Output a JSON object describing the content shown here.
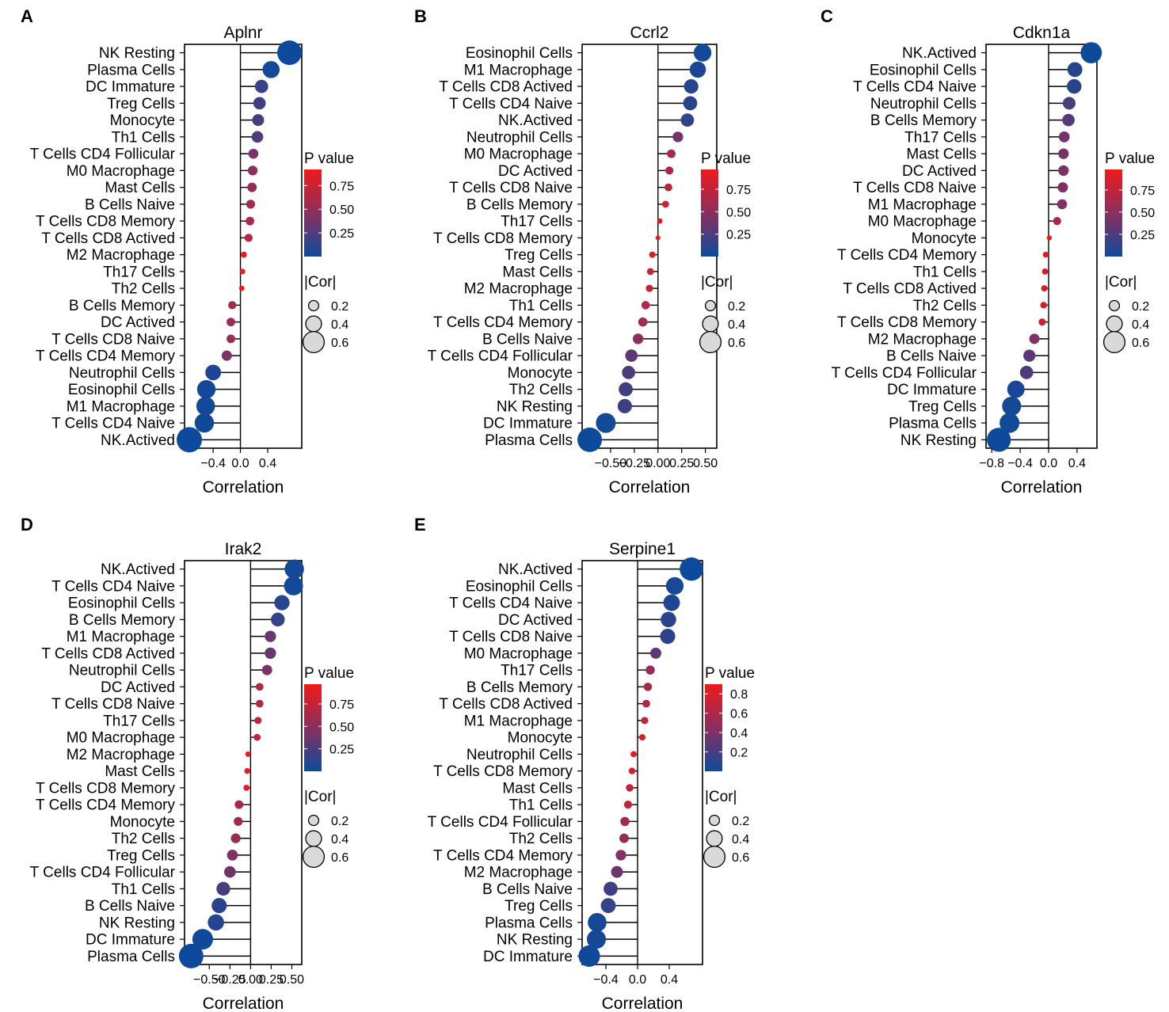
{
  "chart_data": [
    {
      "panel": "A",
      "type": "lollipop",
      "title": "Aplnr",
      "xlabel": "Correlation",
      "xlim": [
        -0.82,
        0.9
      ],
      "xticks": [
        {
          "v": -0.4,
          "label": "−0.4"
        },
        {
          "v": 0.0,
          "label": "0.0"
        },
        {
          "v": 0.4,
          "label": "0.4"
        }
      ],
      "categories": [
        "NK Resting",
        "Plasma Cells",
        "DC Immature",
        "Treg Cells",
        "Monocyte",
        "Th1 Cells",
        "T Cells CD4 Follicular",
        "M0 Macrophage",
        "Mast Cells",
        "B Cells Naive",
        "T Cells CD8 Memory",
        "T Cells CD8 Actived",
        "M2 Macrophage",
        "Th17 Cells",
        "Th2 Cells",
        "B Cells Memory",
        "DC Actived",
        "T Cells CD8 Naive",
        "T Cells CD4 Memory",
        "Neutrophil Cells",
        "Eosinophil Cells",
        "M1 Macrophage",
        "T Cells CD4 Naive",
        "NK.Actived"
      ],
      "correlation": [
        0.72,
        0.45,
        0.31,
        0.28,
        0.26,
        0.25,
        0.19,
        0.18,
        0.17,
        0.15,
        0.14,
        0.12,
        0.05,
        0.03,
        0.02,
        -0.12,
        -0.14,
        -0.14,
        -0.2,
        -0.4,
        -0.5,
        -0.51,
        -0.53,
        -0.75
      ],
      "p_value": [
        0.001,
        0.03,
        0.15,
        0.2,
        0.22,
        0.25,
        0.4,
        0.45,
        0.5,
        0.55,
        0.6,
        0.65,
        0.85,
        0.9,
        0.95,
        0.6,
        0.55,
        0.55,
        0.4,
        0.06,
        0.02,
        0.02,
        0.015,
        0.001
      ],
      "legend": {
        "p_title": "P value",
        "p_ticks": [
          "0.75",
          "0.50",
          "0.25"
        ],
        "p_tick_values": [
          0.75,
          0.5,
          0.25
        ],
        "p_range": [
          0.0,
          0.92
        ],
        "size_title": "|Cor|",
        "size_labels": [
          "0.2",
          "0.4",
          "0.6"
        ]
      }
    },
    {
      "panel": "B",
      "type": "lollipop",
      "title": "Ccrl2",
      "xlabel": "Correlation",
      "xlim": [
        -0.8,
        0.62
      ],
      "xticks": [
        {
          "v": -0.5,
          "label": "−0.50"
        },
        {
          "v": -0.25,
          "label": "−0.25"
        },
        {
          "v": 0.0,
          "label": "0.00"
        },
        {
          "v": 0.25,
          "label": "0.25"
        },
        {
          "v": 0.5,
          "label": "0.50"
        }
      ],
      "categories": [
        "Eosinophil Cells",
        "M1 Macrophage",
        "T Cells CD8 Actived",
        "T Cells CD4 Naive",
        "NK.Actived",
        "Neutrophil Cells",
        "M0 Macrophage",
        "DC Actived",
        "T Cells CD8 Naive",
        "B Cells Memory",
        "Th17 Cells",
        "T Cells CD8 Memory",
        "Treg Cells",
        "Mast Cells",
        "M2 Macrophage",
        "Th1 Cells",
        "T Cells CD4 Memory",
        "B Cells Naive",
        "T Cells CD4 Follicular",
        "Monocyte",
        "Th2 Cells",
        "NK Resting",
        "DC Immature",
        "Plasma Cells"
      ],
      "correlation": [
        0.47,
        0.42,
        0.35,
        0.34,
        0.31,
        0.21,
        0.14,
        0.12,
        0.11,
        0.08,
        0.02,
        0.0,
        -0.06,
        -0.08,
        -0.09,
        -0.13,
        -0.16,
        -0.21,
        -0.28,
        -0.31,
        -0.34,
        -0.35,
        -0.55,
        -0.72
      ],
      "p_value": [
        0.02,
        0.05,
        0.1,
        0.11,
        0.15,
        0.4,
        0.6,
        0.65,
        0.68,
        0.75,
        0.9,
        0.95,
        0.82,
        0.78,
        0.76,
        0.67,
        0.6,
        0.5,
        0.3,
        0.25,
        0.2,
        0.19,
        0.02,
        0.001
      ],
      "legend": {
        "p_title": "P value",
        "p_ticks": [
          "0.75",
          "0.50",
          "0.25"
        ],
        "p_tick_values": [
          0.75,
          0.5,
          0.25
        ],
        "p_range": [
          0.0,
          0.97
        ],
        "size_title": "|Cor|",
        "size_labels": [
          "0.2",
          "0.4",
          "0.6"
        ]
      }
    },
    {
      "panel": "C",
      "type": "lollipop",
      "title": "Cdkn1a",
      "xlabel": "Correlation",
      "xlim": [
        -0.88,
        0.68
      ],
      "xticks": [
        {
          "v": -0.8,
          "label": "−0.8"
        },
        {
          "v": -0.4,
          "label": "−0.4"
        },
        {
          "v": 0.0,
          "label": "0.0"
        },
        {
          "v": 0.4,
          "label": "0.4"
        }
      ],
      "categories": [
        "NK.Actived",
        "Eosinophil Cells",
        "T Cells CD4 Naive",
        "Neutrophil Cells",
        "B Cells Memory",
        "Th17 Cells",
        "Mast Cells",
        "DC Actived",
        "T Cells CD8 Naive",
        "M1 Macrophage",
        "M0 Macrophage",
        "Monocyte",
        "T Cells CD4 Memory",
        "Th1 Cells",
        "T Cells CD8 Actived",
        "Th2 Cells",
        "T Cells CD8 Memory",
        "M2 Macrophage",
        "B Cells Naive",
        "T Cells CD4 Follicular",
        "DC Immature",
        "Treg Cells",
        "Plasma Cells",
        "NK Resting"
      ],
      "correlation": [
        0.6,
        0.37,
        0.36,
        0.29,
        0.28,
        0.22,
        0.21,
        0.21,
        0.2,
        0.19,
        0.12,
        0.01,
        -0.04,
        -0.05,
        -0.06,
        -0.07,
        -0.09,
        -0.2,
        -0.27,
        -0.31,
        -0.46,
        -0.52,
        -0.55,
        -0.7
      ],
      "p_value": [
        0.001,
        0.1,
        0.11,
        0.25,
        0.28,
        0.4,
        0.42,
        0.42,
        0.44,
        0.46,
        0.65,
        0.97,
        0.9,
        0.88,
        0.86,
        0.84,
        0.8,
        0.45,
        0.3,
        0.25,
        0.05,
        0.03,
        0.02,
        0.001
      ],
      "legend": {
        "p_title": "P value",
        "p_ticks": [
          "0.75",
          "0.50",
          "0.25"
        ],
        "p_tick_values": [
          0.75,
          0.5,
          0.25
        ],
        "p_range": [
          0.0,
          0.98
        ],
        "size_title": "|Cor|",
        "size_labels": [
          "0.2",
          "0.4",
          "0.6"
        ]
      }
    },
    {
      "panel": "D",
      "type": "lollipop",
      "title": "Irak2",
      "xlabel": "Correlation",
      "xlim": [
        -0.8,
        0.62
      ],
      "xticks": [
        {
          "v": -0.5,
          "label": "−0.50"
        },
        {
          "v": -0.25,
          "label": "−0.25"
        },
        {
          "v": 0.0,
          "label": "0.00"
        },
        {
          "v": 0.25,
          "label": "0.25"
        },
        {
          "v": 0.5,
          "label": "0.50"
        }
      ],
      "categories": [
        "NK.Actived",
        "T Cells CD4 Naive",
        "Eosinophil Cells",
        "B Cells Memory",
        "M1 Macrophage",
        "T Cells CD8 Actived",
        "Neutrophil Cells",
        "DC Actived",
        "T Cells CD8 Naive",
        "Th17 Cells",
        "M0 Macrophage",
        "M2 Macrophage",
        "Mast Cells",
        "T Cells CD8 Memory",
        "T Cells CD4 Memory",
        "Monocyte",
        "Th2 Cells",
        "Treg Cells",
        "T Cells CD4 Follicular",
        "Th1 Cells",
        "B Cells Naive",
        "NK Resting",
        "DC Immature",
        "Plasma Cells"
      ],
      "correlation": [
        0.53,
        0.52,
        0.38,
        0.33,
        0.24,
        0.24,
        0.2,
        0.11,
        0.11,
        0.09,
        0.08,
        -0.03,
        -0.04,
        -0.05,
        -0.14,
        -0.15,
        -0.18,
        -0.22,
        -0.25,
        -0.33,
        -0.38,
        -0.42,
        -0.58,
        -0.72
      ],
      "p_value": [
        0.02,
        0.02,
        0.1,
        0.15,
        0.35,
        0.35,
        0.42,
        0.68,
        0.68,
        0.72,
        0.75,
        0.95,
        0.93,
        0.92,
        0.62,
        0.6,
        0.55,
        0.45,
        0.38,
        0.22,
        0.12,
        0.09,
        0.01,
        0.001
      ],
      "legend": {
        "p_title": "P value",
        "p_ticks": [
          "0.75",
          "0.50",
          "0.25"
        ],
        "p_tick_values": [
          0.75,
          0.5,
          0.25
        ],
        "p_range": [
          0.0,
          0.97
        ],
        "size_title": "|Cor|",
        "size_labels": [
          "0.2",
          "0.4",
          "0.6"
        ]
      }
    },
    {
      "panel": "E",
      "type": "lollipop",
      "title": "Serpine1",
      "xlabel": "Correlation",
      "xlim": [
        -0.7,
        0.82
      ],
      "xticks": [
        {
          "v": -0.4,
          "label": "−0.4"
        },
        {
          "v": 0.0,
          "label": "0.0"
        },
        {
          "v": 0.4,
          "label": "0.4"
        }
      ],
      "categories": [
        "NK.Actived",
        "Eosinophil Cells",
        "T Cells CD4 Naive",
        "DC Actived",
        "T Cells CD8 Naive",
        "M0 Macrophage",
        "Th17 Cells",
        "B Cells Memory",
        "T Cells CD8 Actived",
        "M1 Macrophage",
        "Monocyte",
        "Neutrophil Cells",
        "T Cells CD8 Memory",
        "Mast Cells",
        "Th1 Cells",
        "T Cells CD4 Follicular",
        "Th2 Cells",
        "T Cells CD4 Memory",
        "M2 Macrophage",
        "B Cells Naive",
        "Treg Cells",
        "Plasma Cells",
        "NK Resting",
        "DC Immature"
      ],
      "correlation": [
        0.68,
        0.47,
        0.43,
        0.39,
        0.38,
        0.23,
        0.16,
        0.13,
        0.11,
        0.09,
        0.06,
        -0.05,
        -0.07,
        -0.1,
        -0.12,
        -0.16,
        -0.17,
        -0.21,
        -0.26,
        -0.34,
        -0.37,
        -0.51,
        -0.52,
        -0.61
      ],
      "p_value": [
        0.001,
        0.04,
        0.06,
        0.1,
        0.11,
        0.3,
        0.5,
        0.6,
        0.65,
        0.7,
        0.8,
        0.85,
        0.8,
        0.72,
        0.68,
        0.55,
        0.5,
        0.42,
        0.35,
        0.18,
        0.14,
        0.03,
        0.03,
        0.01
      ],
      "legend": {
        "p_title": "P value",
        "p_ticks": [
          "0.8",
          "0.6",
          "0.4",
          "0.2"
        ],
        "p_tick_values": [
          0.8,
          0.6,
          0.4,
          0.2
        ],
        "p_range": [
          0.0,
          0.9
        ],
        "size_title": "|Cor|",
        "size_labels": [
          "0.2",
          "0.4",
          "0.6"
        ]
      }
    }
  ]
}
